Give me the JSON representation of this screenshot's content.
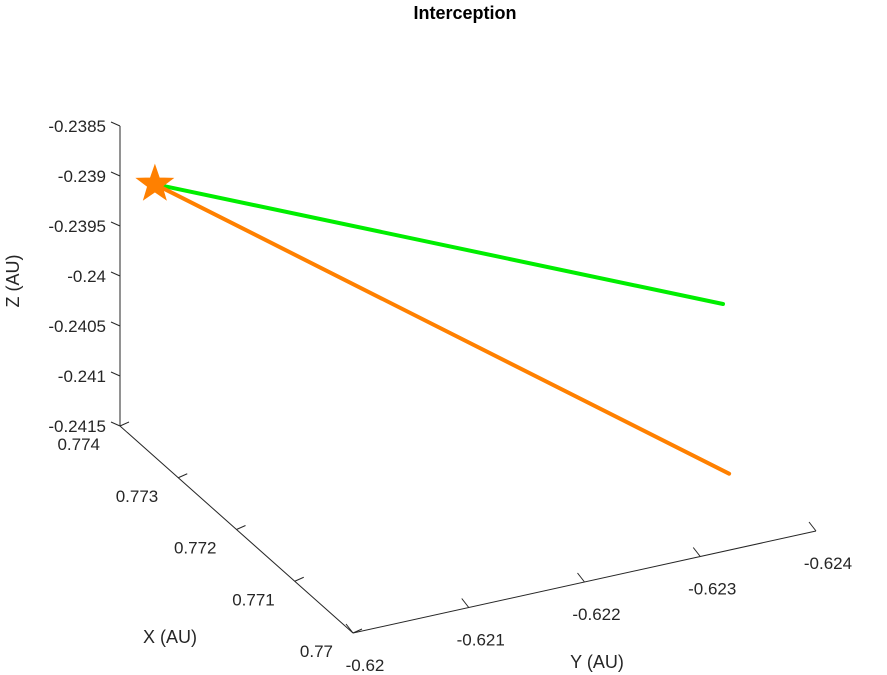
{
  "chart_data": {
    "type": "line",
    "projection": "3d",
    "title": "Interception",
    "xlabel": "X (AU)",
    "ylabel": "Y (AU)",
    "zlabel": "Z (AU)",
    "xlim": [
      0.77,
      0.774
    ],
    "ylim": [
      -0.62,
      -0.624
    ],
    "zlim": [
      -0.2415,
      -0.2385
    ],
    "x_ticks": [
      "0.774",
      "0.773",
      "0.772",
      "0.771",
      "0.77"
    ],
    "y_ticks": [
      "-0.62",
      "-0.621",
      "-0.622",
      "-0.623",
      "-0.624"
    ],
    "z_ticks": [
      "-0.2385",
      "-0.239",
      "-0.2395",
      "-0.24",
      "-0.2405",
      "-0.241",
      "-0.2415"
    ],
    "grid": false,
    "series": [
      {
        "color": "#00ee00",
        "points": [
          [
            0.7736,
            -0.6201,
            -0.2389
          ],
          [
            0.7712,
            -0.6238,
            -0.2398
          ]
        ]
      },
      {
        "color": "#ff8000",
        "points": [
          [
            0.7736,
            -0.6201,
            -0.2389
          ],
          [
            0.7701,
            -0.6233,
            -0.2408
          ]
        ]
      }
    ],
    "marker": {
      "symbol": "star",
      "color": "#ff8000",
      "point": [
        0.7736,
        -0.6201,
        -0.2389
      ]
    }
  }
}
